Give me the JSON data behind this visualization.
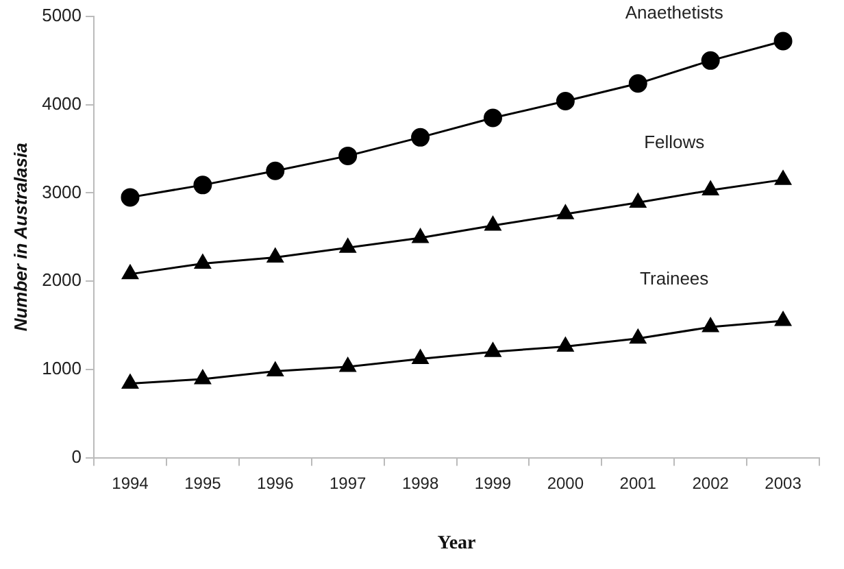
{
  "chart_data": {
    "type": "line",
    "xlabel": "Year",
    "ylabel": "Number in Australasia",
    "categories": [
      "1994",
      "1995",
      "1996",
      "1997",
      "1998",
      "1999",
      "2000",
      "2001",
      "2002",
      "2003"
    ],
    "series": [
      {
        "name": "Anaethetists",
        "color": "#000000",
        "marker": "circle",
        "values": [
          2950,
          3090,
          3250,
          3420,
          3630,
          3850,
          4040,
          4240,
          4500,
          4720
        ]
      },
      {
        "name": "Fellows",
        "color": "#000000",
        "marker": "triangle",
        "values": [
          2080,
          2200,
          2270,
          2380,
          2490,
          2630,
          2760,
          2890,
          3030,
          3150
        ]
      },
      {
        "name": "Trainees",
        "color": "#000000",
        "marker": "triangle",
        "values": [
          840,
          890,
          980,
          1030,
          1120,
          1200,
          1260,
          1350,
          1480,
          1550
        ]
      }
    ],
    "ylim": [
      0,
      5000
    ],
    "yticks": [
      0,
      1000,
      2000,
      3000,
      4000,
      5000
    ],
    "grid": false,
    "legend": false,
    "line_style": "solid"
  }
}
